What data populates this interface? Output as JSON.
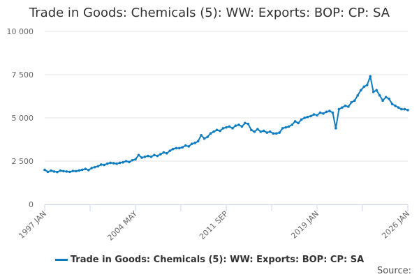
{
  "chart_data": {
    "type": "line",
    "title": "Trade in Goods: Chemicals (5): WW: Exports: BOP: CP: SA",
    "xlabel": "",
    "ylabel": "",
    "ylim": [
      0,
      10000
    ],
    "yticks": [
      0,
      2500,
      5000,
      7500,
      10000
    ],
    "ytick_labels": [
      "0",
      "2 500",
      "5 000",
      "7 500",
      "10 000"
    ],
    "xticks": [
      "1997 JAN",
      "2004 MAY",
      "2011 SEP",
      "2019 JAN",
      "2026 JAN"
    ],
    "xrange": [
      "1997-01",
      "2026-01"
    ],
    "grid": true,
    "legend_position": "bottom",
    "color": "#0d7cc1",
    "series": [
      {
        "name": "Trade in Goods: Chemicals (5): WW: Exports: BOP: CP: SA",
        "start": "1997-01",
        "step_months": 3,
        "values": [
          2000,
          1880,
          1950,
          1900,
          1870,
          1950,
          1920,
          1900,
          1880,
          1930,
          1920,
          1960,
          2000,
          2050,
          1980,
          2100,
          2150,
          2200,
          2300,
          2280,
          2350,
          2400,
          2380,
          2350,
          2400,
          2430,
          2500,
          2450,
          2550,
          2600,
          2850,
          2700,
          2750,
          2800,
          2750,
          2850,
          2800,
          2900,
          3000,
          2950,
          3100,
          3200,
          3250,
          3250,
          3300,
          3400,
          3350,
          3500,
          3550,
          3650,
          4000,
          3800,
          3900,
          4100,
          4200,
          4300,
          4250,
          4400,
          4450,
          4500,
          4400,
          4550,
          4600,
          4500,
          4700,
          4650,
          4300,
          4200,
          4350,
          4200,
          4250,
          4150,
          4200,
          4100,
          4100,
          4150,
          4400,
          4450,
          4500,
          4600,
          4800,
          4700,
          4900,
          5000,
          5050,
          5100,
          5200,
          5150,
          5300,
          5250,
          5350,
          5400,
          5300,
          4400,
          5500,
          5600,
          5700,
          5650,
          5900,
          6000,
          6300,
          6600,
          6800,
          6900,
          7400,
          6500,
          6600,
          6300,
          6000,
          6200,
          6100,
          5800,
          5700,
          5600,
          5500,
          5500,
          5450
        ]
      }
    ]
  },
  "legend": {
    "label": "Trade in Goods: Chemicals (5): WW: Exports: BOP: CP: SA"
  },
  "source_label": "Source:"
}
